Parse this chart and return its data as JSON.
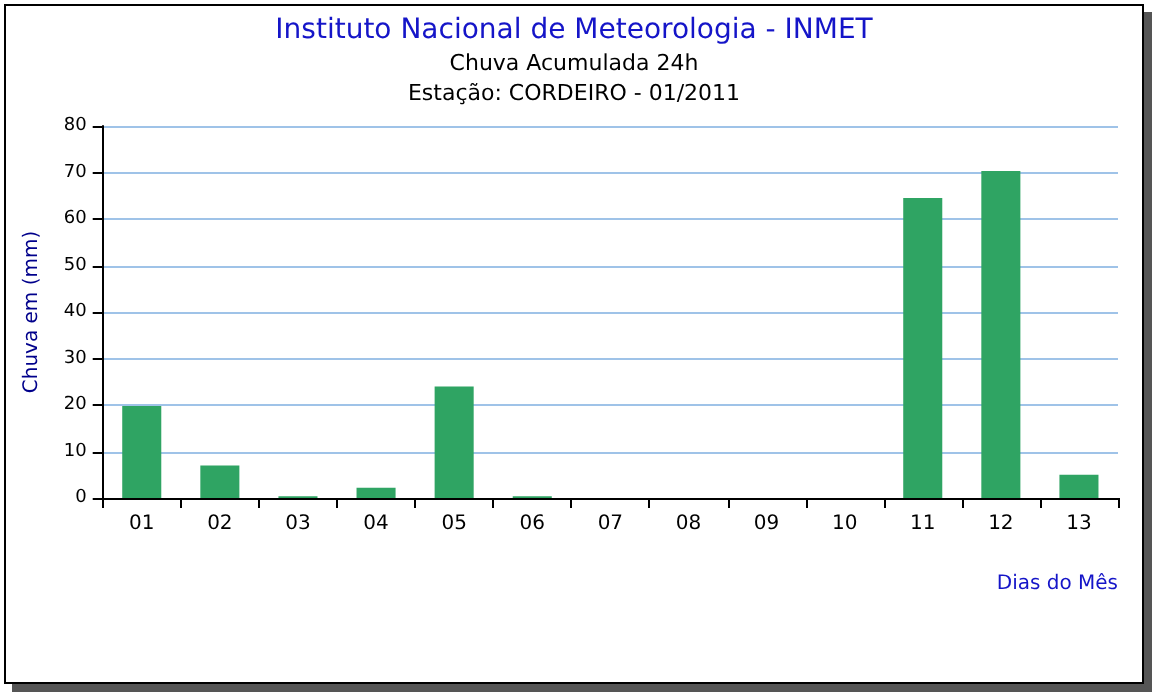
{
  "chart_data": {
    "type": "bar",
    "title": "Instituto Nacional de Meteorologia - INMET",
    "subtitle": "Chuva Acumulada 24h\nEstação: CORDEIRO - 01/2011",
    "xlabel": "Dias do Mês",
    "ylabel": "Chuva em (mm)",
    "categories": [
      "01",
      "02",
      "03",
      "04",
      "05",
      "06",
      "07",
      "08",
      "09",
      "10",
      "11",
      "12",
      "13"
    ],
    "values": [
      19.8,
      7,
      0.4,
      2.2,
      24,
      0.4,
      0,
      0,
      0,
      0,
      64.5,
      70.3,
      5
    ],
    "color": "#2fa463",
    "ylim": [
      0,
      80
    ],
    "yticks": [
      0,
      10,
      20,
      30,
      40,
      50,
      60,
      70,
      80
    ],
    "grid": "y"
  }
}
